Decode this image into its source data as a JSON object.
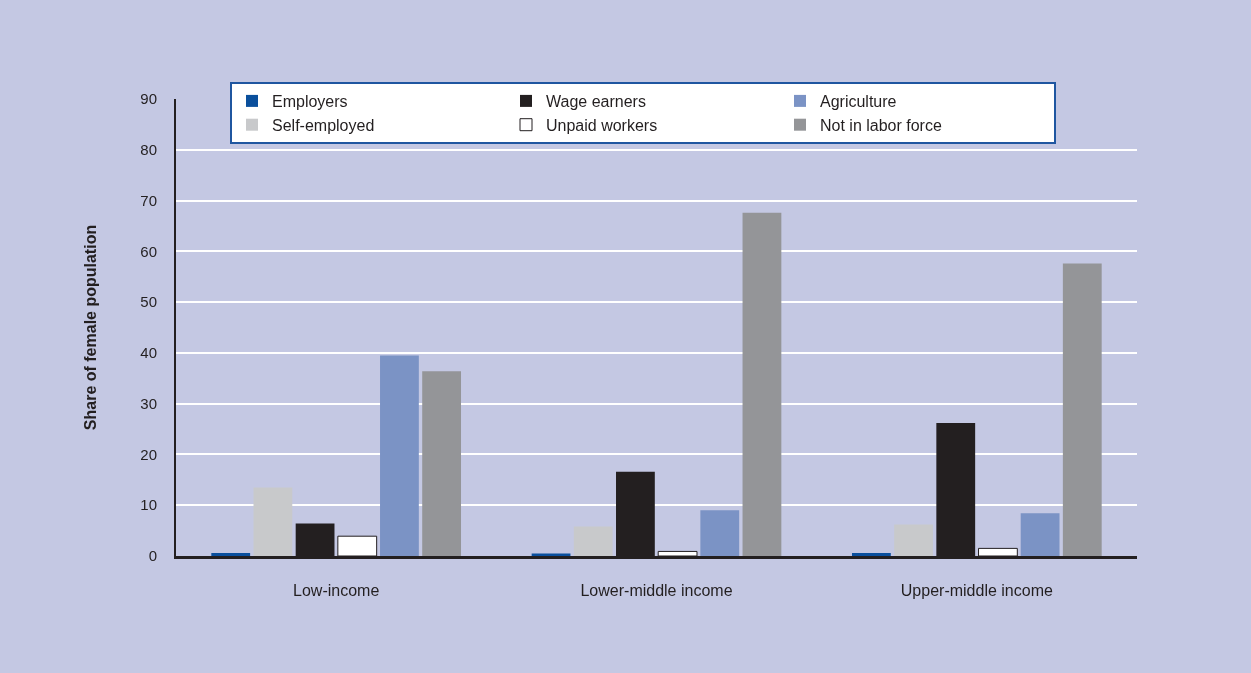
{
  "chart_data": {
    "type": "bar",
    "ylabel": "Share of female population",
    "categories": [
      "Low-income",
      "Lower-middle income",
      "Upper-middle income"
    ],
    "series": [
      {
        "name": "Employers",
        "color": "#0a4f9c",
        "values": [
          0.6,
          0.5,
          0.6
        ]
      },
      {
        "name": "Self-employed",
        "color": "#c8c9cb",
        "values": [
          13.5,
          5.8,
          6.2
        ]
      },
      {
        "name": "Wage earners",
        "color": "#231f20",
        "values": [
          6.4,
          16.6,
          26.2
        ]
      },
      {
        "name": "Unpaid workers",
        "color": "#ffffff",
        "values": [
          3.9,
          0.9,
          1.5
        ]
      },
      {
        "name": "Agriculture",
        "color": "#7b93c5",
        "values": [
          39.5,
          9.0,
          8.4
        ]
      },
      {
        "name": "Not in labor force",
        "color": "#949598",
        "values": [
          36.4,
          67.6,
          57.6
        ]
      }
    ],
    "ylim": [
      0,
      90
    ],
    "yticks": [
      0,
      10,
      20,
      30,
      40,
      50,
      60,
      70,
      80,
      90
    ],
    "grid": "y",
    "legend": "top"
  }
}
